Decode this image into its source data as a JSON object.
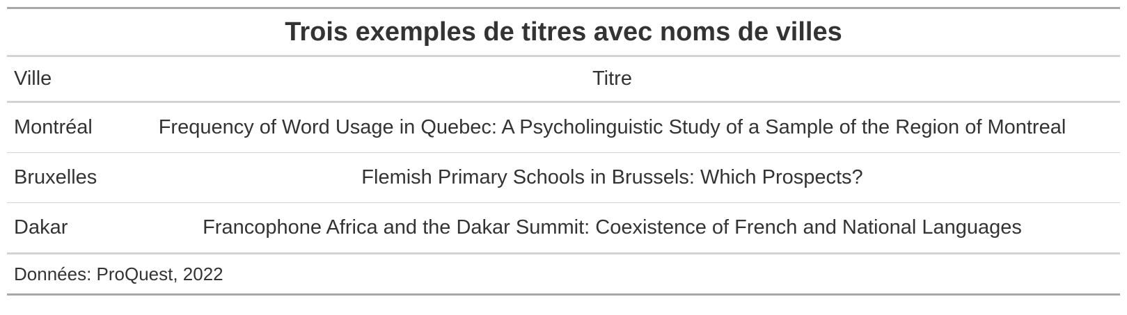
{
  "table": {
    "title": "Trois exemples de titres avec noms de villes",
    "headers": {
      "ville": "Ville",
      "titre": "Titre"
    },
    "rows": [
      {
        "ville": "Montréal",
        "titre": "Frequency of Word Usage in Quebec: A Psycholinguistic Study of a Sample of the Region of Montreal"
      },
      {
        "ville": "Bruxelles",
        "titre": "Flemish Primary Schools in Brussels: Which Prospects?"
      },
      {
        "ville": "Dakar",
        "titre": "Francophone Africa and the Dakar Summit: Coexistence of French and National Languages"
      }
    ],
    "source_note": "Données: ProQuest, 2022"
  }
}
